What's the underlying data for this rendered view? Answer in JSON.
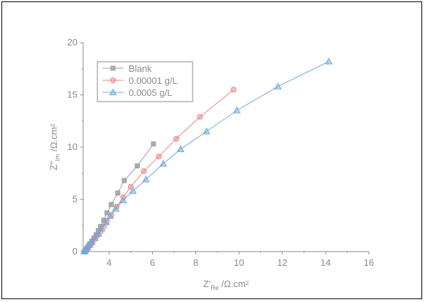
{
  "chart_data": {
    "type": "scatter",
    "title": "",
    "xlabel": {
      "main": "Z'",
      "sub": "Re",
      "unit": " /Ω.cm²"
    },
    "ylabel": {
      "main": "Z''",
      "sub": "Im",
      "unit": " /Ω.cm²"
    },
    "xlim": [
      2.8,
      16
    ],
    "ylim": [
      0,
      20
    ],
    "xticks": [
      4,
      6,
      8,
      10,
      12,
      14,
      16
    ],
    "yticks": [
      0,
      5,
      10,
      15,
      20
    ],
    "grid": false,
    "legend_position": "top-left",
    "series": [
      {
        "name": "Blank",
        "color": "#9e9e9e",
        "marker": "square",
        "x": [
          2.85,
          2.9,
          2.95,
          3.0,
          3.05,
          3.1,
          3.2,
          3.3,
          3.4,
          3.5,
          3.6,
          3.75,
          3.9,
          4.1,
          4.4,
          4.7,
          5.3,
          6.05
        ],
        "y": [
          0.0,
          0.1,
          0.25,
          0.4,
          0.55,
          0.75,
          1.0,
          1.3,
          1.6,
          2.0,
          2.4,
          3.0,
          3.7,
          4.5,
          5.6,
          6.8,
          8.2,
          10.3
        ]
      },
      {
        "name": "0.00001 g/L",
        "color": "#f08080",
        "marker": "circle",
        "x": [
          2.9,
          2.95,
          3.0,
          3.1,
          3.2,
          3.3,
          3.45,
          3.6,
          3.75,
          3.9,
          4.1,
          4.35,
          4.65,
          5.0,
          5.6,
          6.3,
          7.1,
          8.2,
          9.75
        ],
        "y": [
          0.0,
          0.15,
          0.3,
          0.55,
          0.8,
          1.1,
          1.5,
          1.9,
          2.4,
          2.9,
          3.5,
          4.3,
          5.2,
          6.2,
          7.7,
          9.1,
          10.8,
          12.9,
          15.5
        ]
      },
      {
        "name": "0.0005 g/L",
        "color": "#6fa8dc",
        "marker": "triangle",
        "x": [
          2.85,
          2.9,
          2.95,
          3.0,
          3.1,
          3.2,
          3.35,
          3.5,
          3.65,
          3.85,
          4.05,
          4.3,
          4.65,
          5.1,
          5.7,
          6.5,
          7.3,
          8.5,
          9.9,
          11.8,
          14.15
        ],
        "y": [
          0.0,
          0.1,
          0.25,
          0.4,
          0.65,
          0.9,
          1.3,
          1.7,
          2.2,
          2.8,
          3.4,
          4.1,
          4.9,
          5.8,
          6.9,
          8.4,
          9.8,
          11.5,
          13.5,
          15.8,
          18.2
        ]
      }
    ]
  }
}
